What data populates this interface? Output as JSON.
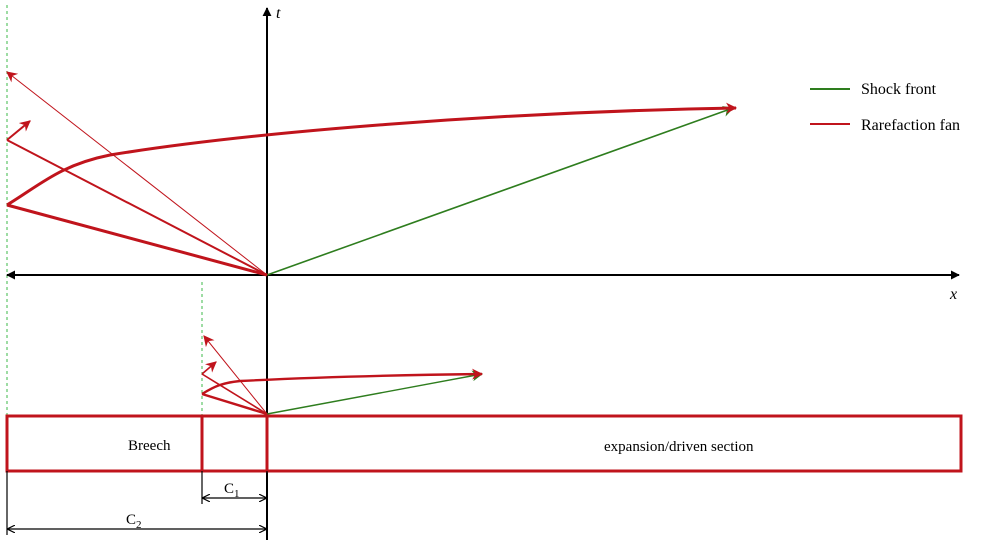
{
  "axes": {
    "t_label": "t",
    "x_label": "x"
  },
  "legend": {
    "items": [
      {
        "label": "Shock front",
        "color": "#2e7d1e"
      },
      {
        "label": "Rarefaction fan",
        "color": "#c0141c"
      }
    ]
  },
  "tube": {
    "breech_label": "Breech",
    "driven_label": "expansion/driven section"
  },
  "dimensions": {
    "c1": {
      "base": "C",
      "sub": "1"
    },
    "c2": {
      "base": "C",
      "sub": "2"
    }
  },
  "colors": {
    "shock": "#2e7d1e",
    "rarefaction": "#c0141c",
    "axis": "#000000",
    "guide": "#3cb84a"
  }
}
